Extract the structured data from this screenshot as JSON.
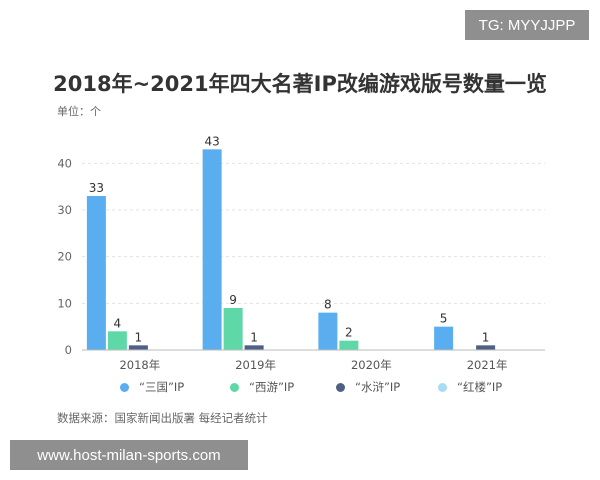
{
  "overlay": {
    "top_right_badge": "TG: MYYJJPP",
    "bottom_banner": "www.host-milan-sports.com"
  },
  "chart_data": {
    "type": "bar",
    "title": "2018年~2021年四大名著IP改编游戏版号数量一览",
    "unit_label": "单位：个",
    "categories": [
      "2018年",
      "2019年",
      "2020年",
      "2021年"
    ],
    "series": [
      {
        "name": "“三国”IP",
        "color": "#5aaef0",
        "values": [
          33,
          43,
          8,
          5
        ]
      },
      {
        "name": "“西游”IP",
        "color": "#5fd8a8",
        "values": [
          4,
          9,
          2,
          null
        ]
      },
      {
        "name": "“水浒”IP",
        "color": "#4f5f86",
        "values": [
          1,
          1,
          null,
          1
        ]
      },
      {
        "name": "“红楼”IP",
        "color": "#a8dcf4",
        "values": [
          null,
          null,
          null,
          null
        ]
      }
    ],
    "ylim": [
      0,
      45
    ],
    "yticks": [
      0,
      10,
      20,
      30,
      40
    ],
    "grid": true,
    "legend_position": "bottom",
    "source": "数据来源：国家新闻出版署 每经记者统计"
  }
}
